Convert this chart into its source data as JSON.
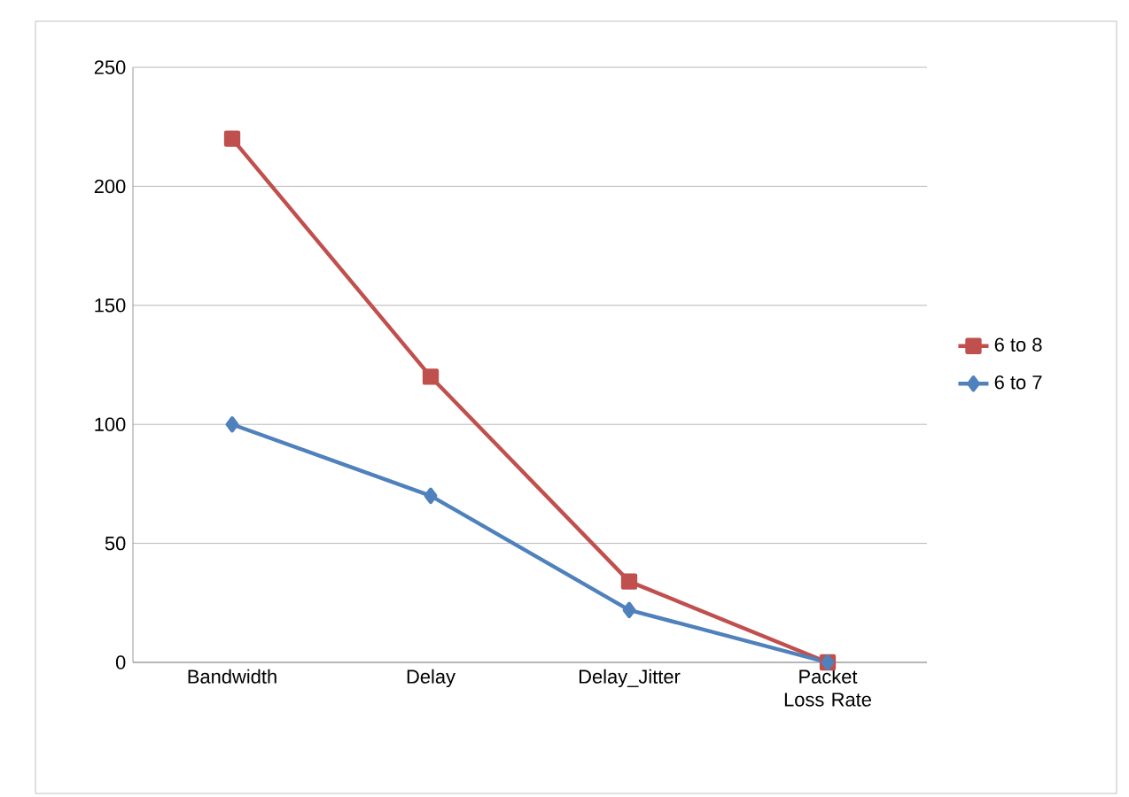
{
  "chart_data": {
    "type": "line",
    "categories": [
      "Bandwidth",
      "Delay",
      "Delay_Jitter",
      "Packet Loss Rate"
    ],
    "series": [
      {
        "name": "6 to 8",
        "color": "#c0504d",
        "marker": "square",
        "values": [
          220,
          120,
          34,
          0
        ]
      },
      {
        "name": "6 to 7",
        "color": "#4f81bd",
        "marker": "diamond",
        "values": [
          100,
          70,
          22,
          0
        ]
      }
    ],
    "ylim": [
      0,
      250
    ],
    "yticks": [
      0,
      50,
      100,
      150,
      200,
      250
    ],
    "grid": "y",
    "legend": "right",
    "line_style": "solid"
  }
}
